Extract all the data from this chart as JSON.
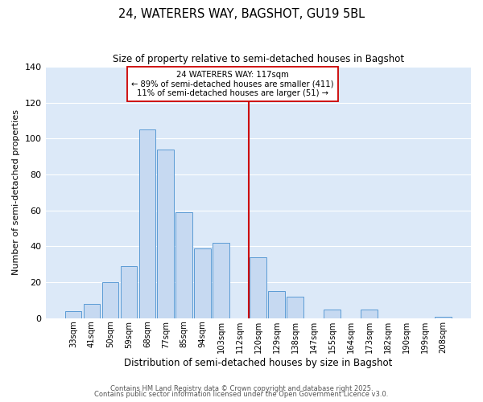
{
  "title1": "24, WATERERS WAY, BAGSHOT, GU19 5BL",
  "title2": "Size of property relative to semi-detached houses in Bagshot",
  "xlabel": "Distribution of semi-detached houses by size in Bagshot",
  "ylabel": "Number of semi-detached properties",
  "bar_labels": [
    "33sqm",
    "41sqm",
    "50sqm",
    "59sqm",
    "68sqm",
    "77sqm",
    "85sqm",
    "94sqm",
    "103sqm",
    "112sqm",
    "120sqm",
    "129sqm",
    "138sqm",
    "147sqm",
    "155sqm",
    "164sqm",
    "173sqm",
    "182sqm",
    "190sqm",
    "199sqm",
    "208sqm"
  ],
  "bar_heights": [
    4,
    8,
    20,
    29,
    105,
    94,
    59,
    39,
    42,
    0,
    34,
    15,
    12,
    0,
    5,
    0,
    5,
    0,
    0,
    0,
    1
  ],
  "bar_color": "#c6d9f1",
  "bar_edge_color": "#5b9bd5",
  "vline_x_index": 9.5,
  "vline_color": "#cc0000",
  "annotation_title": "24 WATERERS WAY: 117sqm",
  "annotation_line1": "← 89% of semi-detached houses are smaller (411)",
  "annotation_line2": "11% of semi-detached houses are larger (51) →",
  "annotation_box_color": "#ffffff",
  "annotation_box_edge": "#cc0000",
  "ylim": [
    0,
    140
  ],
  "yticks": [
    0,
    20,
    40,
    60,
    80,
    100,
    120,
    140
  ],
  "footer1": "Contains HM Land Registry data © Crown copyright and database right 2025.",
  "footer2": "Contains public sector information licensed under the Open Government Licence v3.0.",
  "background_color": "#ffffff",
  "axes_bg_color": "#dce9f8",
  "grid_color": "#ffffff"
}
